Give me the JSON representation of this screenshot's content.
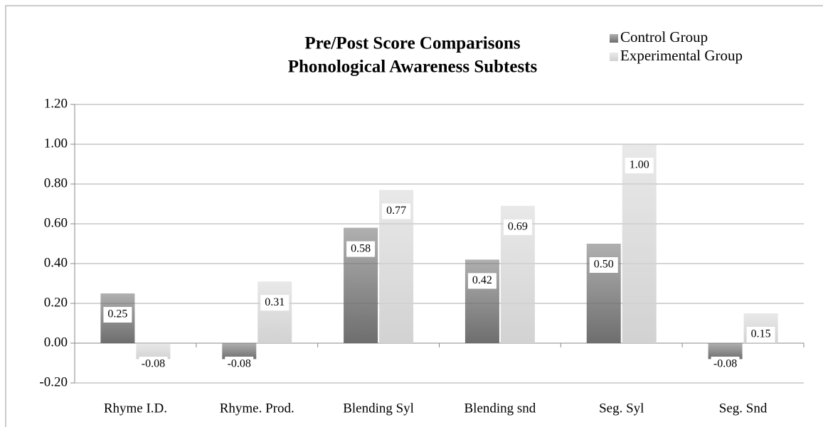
{
  "chart_data": {
    "type": "bar",
    "title": [
      "Pre/Post Score Comparisons",
      "Phonological Awareness Subtests"
    ],
    "categories": [
      "Rhyme I.D.",
      "Rhyme. Prod.",
      "Blending Syl",
      "Blending snd",
      "Seg. Syl",
      "Seg. Snd"
    ],
    "series": [
      {
        "name": "Control Group",
        "color": "#6e6e6e",
        "values": [
          0.25,
          -0.08,
          0.58,
          0.42,
          0.5,
          -0.08
        ],
        "value_labels": [
          "0.25",
          "-0.08",
          "0.58",
          "0.42",
          "0.50",
          "-0.08"
        ]
      },
      {
        "name": "Experimental Group",
        "color": "#d2d2d2",
        "values": [
          -0.08,
          0.31,
          0.77,
          0.69,
          1.0,
          0.15
        ],
        "value_labels": [
          "-0.08",
          "0.31",
          "0.77",
          "0.69",
          "1.00",
          "0.15"
        ]
      }
    ],
    "ylim": [
      -0.2,
      1.2
    ],
    "yticks": [
      {
        "value": -0.2,
        "label": "-0.20"
      },
      {
        "value": 0,
        "label": "0.00"
      },
      {
        "value": 0.2,
        "label": "0.20"
      },
      {
        "value": 0.4,
        "label": "0.40"
      },
      {
        "value": 0.6,
        "label": "0.60"
      },
      {
        "value": 0.8,
        "label": "0.80"
      },
      {
        "value": 1.0,
        "label": "1.00"
      },
      {
        "value": 1.2,
        "label": "1.20"
      }
    ],
    "grid": true,
    "legend": "top-right"
  }
}
